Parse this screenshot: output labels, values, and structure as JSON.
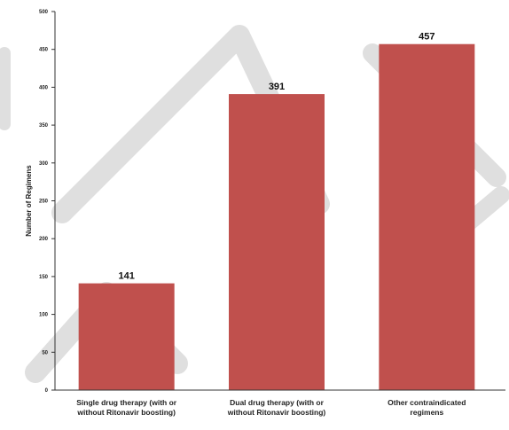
{
  "chart_data": {
    "type": "bar",
    "title": "",
    "xlabel": "",
    "ylabel": "Number of Regimens",
    "categories": [
      [
        "Single drug therapy (with or",
        "without Ritonavir boosting)"
      ],
      [
        "Dual drug therapy (with or",
        "without Ritonavir boosting)"
      ],
      [
        "Other contraindicated",
        "regimens"
      ]
    ],
    "values": [
      141,
      391,
      457
    ],
    "data_labels": [
      "141",
      "391",
      "457"
    ],
    "ylim": [
      0,
      500
    ],
    "yticks": [
      0,
      50,
      100,
      150,
      200,
      250,
      300,
      350,
      400,
      450,
      500
    ],
    "ytick_labels": [
      "0",
      "50",
      "100",
      "150",
      "200",
      "250",
      "300",
      "350",
      "400",
      "450",
      "500"
    ],
    "grid": false,
    "legend": "none",
    "colors": {
      "bar": "#c0504d",
      "axis": "#333333",
      "watermark": "#d9d9d9"
    }
  }
}
